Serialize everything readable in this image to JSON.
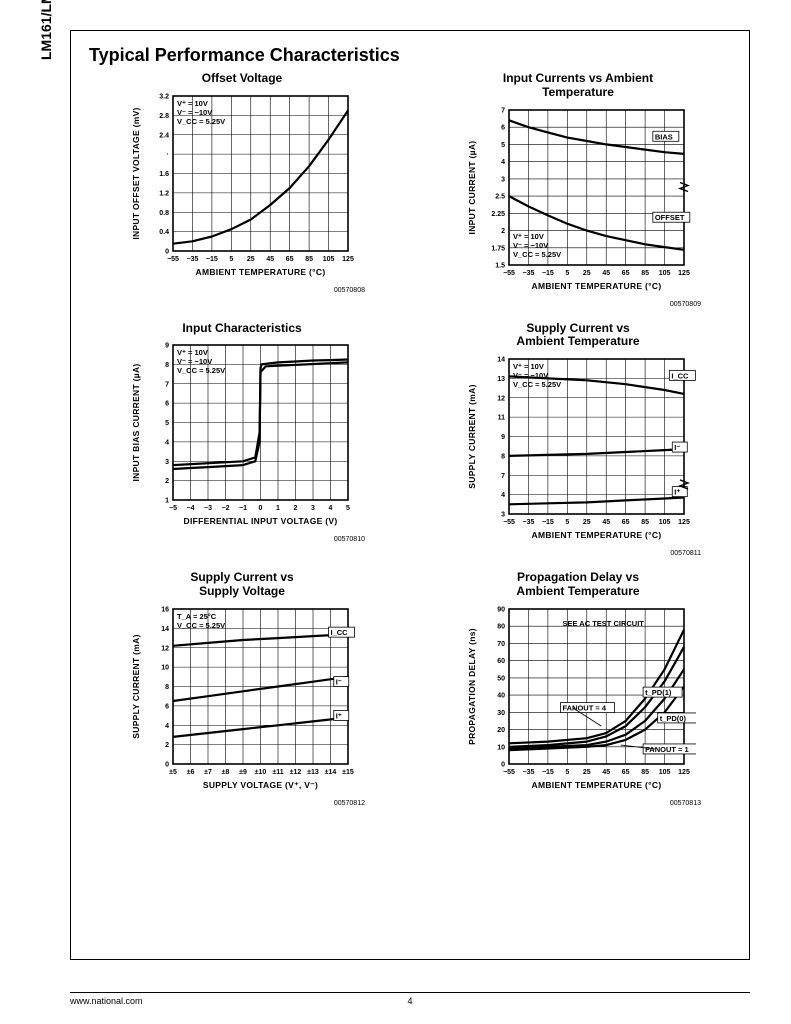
{
  "side_label": "LM161/LM361",
  "section_title": "Typical Performance Characteristics",
  "footer": {
    "url": "www.national.com",
    "page": "4"
  },
  "common": {
    "conditions": [
      "V⁺ = 10V",
      "V⁻ = −10V",
      "V_CC = 5.25V"
    ],
    "axis_color": "#000000",
    "grid_color": "#000000",
    "line_color": "#000000",
    "bg": "#ffffff",
    "line_width": 2.2,
    "grid_width": 0.6,
    "axis_width": 1.6,
    "tick_fontsize": 7,
    "label_fontsize": 8.5,
    "cond_fontsize": 7.5
  },
  "charts": [
    {
      "id": "offset_voltage",
      "title": "Offset Voltage",
      "figno": "00570808",
      "type": "line",
      "xlabel": "AMBIENT TEMPERATURE (°C)",
      "ylabel": "INPUT OFFSET VOLTAGE (mV)",
      "xticks": [
        -55,
        -35,
        -15,
        5,
        25,
        45,
        65,
        85,
        105,
        125
      ],
      "yticks": [
        0,
        0.4,
        0.8,
        1.2,
        1.6,
        "·",
        2.4,
        2.8,
        3.2
      ],
      "yvalues": [
        0,
        0.4,
        0.8,
        1.2,
        1.6,
        2.0,
        2.4,
        2.8,
        3.2
      ],
      "xlim": [
        -55,
        125
      ],
      "ylim": [
        0,
        3.2
      ],
      "series": [
        {
          "pts": [
            [
              -55,
              0.15
            ],
            [
              -35,
              0.2
            ],
            [
              -15,
              0.3
            ],
            [
              5,
              0.45
            ],
            [
              25,
              0.65
            ],
            [
              45,
              0.95
            ],
            [
              65,
              1.3
            ],
            [
              85,
              1.75
            ],
            [
              105,
              2.3
            ],
            [
              125,
              2.9
            ]
          ]
        }
      ],
      "cond_at": "top-left",
      "annotations": []
    },
    {
      "id": "input_currents",
      "title": "Input Currents vs Ambient\nTemperature",
      "figno": "00570809",
      "type": "line",
      "xlabel": "AMBIENT TEMPERATURE (°C)",
      "ylabel": "INPUT CURRENT (µA)",
      "xticks": [
        -55,
        -35,
        -15,
        5,
        25,
        45,
        65,
        85,
        105,
        125
      ],
      "yticks": [
        1.5,
        1.75,
        2,
        2.25,
        2.5,
        3,
        4,
        5,
        6,
        7
      ],
      "yvalues": [
        1.5,
        1.75,
        2,
        2.25,
        2.5,
        3,
        4,
        5,
        6,
        7
      ],
      "xlim": [
        -55,
        125
      ],
      "ylim": [
        1.5,
        7
      ],
      "series": [
        {
          "label": "BIAS",
          "label_at": [
            95,
            5.3
          ],
          "pts": [
            [
              -55,
              6.4
            ],
            [
              -35,
              6.0
            ],
            [
              -15,
              5.7
            ],
            [
              5,
              5.4
            ],
            [
              25,
              5.2
            ],
            [
              45,
              5.0
            ],
            [
              65,
              4.85
            ],
            [
              85,
              4.7
            ],
            [
              105,
              4.55
            ],
            [
              125,
              4.45
            ]
          ]
        },
        {
          "label": "OFFSET",
          "label_at": [
            95,
            2.15
          ],
          "pts": [
            [
              -55,
              2.5
            ],
            [
              -35,
              2.35
            ],
            [
              -15,
              2.22
            ],
            [
              5,
              2.1
            ],
            [
              25,
              2.0
            ],
            [
              45,
              1.92
            ],
            [
              65,
              1.86
            ],
            [
              85,
              1.8
            ],
            [
              105,
              1.76
            ],
            [
              125,
              1.72
            ]
          ]
        }
      ],
      "cond_at": "bottom-left",
      "ybreak": [
        2.5,
        3
      ]
    },
    {
      "id": "input_char",
      "title": "Input Characteristics",
      "figno": "00570810",
      "type": "line",
      "xlabel": "DIFFERENTIAL INPUT VOLTAGE (V)",
      "ylabel": "INPUT BIAS CURRENT (µA)",
      "xticks": [
        -5,
        -4,
        -3,
        -2,
        -1,
        0,
        1,
        2,
        3,
        4,
        5
      ],
      "yticks": [
        1,
        2,
        3,
        4,
        5,
        6,
        7,
        8,
        9
      ],
      "yvalues": [
        1,
        2,
        3,
        4,
        5,
        6,
        7,
        8,
        9
      ],
      "xlim": [
        -5,
        5
      ],
      "ylim": [
        1,
        9
      ],
      "series": [
        {
          "pts": [
            [
              -5,
              2.6
            ],
            [
              -4,
              2.65
            ],
            [
              -3,
              2.7
            ],
            [
              -2,
              2.75
            ],
            [
              -1,
              2.8
            ],
            [
              -0.3,
              3.0
            ],
            [
              -0.05,
              4.0
            ],
            [
              0,
              7.8
            ],
            [
              0.05,
              8.0
            ],
            [
              1,
              8.1
            ],
            [
              2,
              8.15
            ],
            [
              3,
              8.2
            ],
            [
              4,
              8.22
            ],
            [
              5,
              8.25
            ]
          ]
        },
        {
          "pts": [
            [
              -5,
              2.8
            ],
            [
              -1,
              3.0
            ],
            [
              -0.3,
              3.2
            ],
            [
              -0.05,
              4.5
            ],
            [
              0,
              7.6
            ],
            [
              0.3,
              7.9
            ],
            [
              5,
              8.1
            ]
          ]
        }
      ],
      "cond_at": "top-left"
    },
    {
      "id": "supply_current_temp",
      "title": "Supply Current vs\nAmbient Temperature",
      "figno": "00570811",
      "type": "line",
      "xlabel": "AMBIENT TEMPERATURE (°C)",
      "ylabel": "SUPPLY CURRENT (mA)",
      "xticks": [
        -55,
        -35,
        -15,
        5,
        25,
        45,
        65,
        85,
        105,
        125
      ],
      "yticks": [
        3,
        4,
        7,
        8,
        9,
        11,
        12,
        13,
        14
      ],
      "yvalues": [
        3,
        4,
        7,
        8,
        9,
        11,
        12,
        13,
        14
      ],
      "xlim": [
        -55,
        125
      ],
      "ylim": [
        3,
        14
      ],
      "series": [
        {
          "label": "I_CC",
          "label_at": [
            112,
            13.0
          ],
          "pts": [
            [
              -55,
              13.1
            ],
            [
              -15,
              13.0
            ],
            [
              25,
              12.9
            ],
            [
              65,
              12.7
            ],
            [
              105,
              12.4
            ],
            [
              125,
              12.2
            ]
          ]
        },
        {
          "label": "I⁻",
          "label_at": [
            115,
            8.3
          ],
          "pts": [
            [
              -55,
              8.0
            ],
            [
              -15,
              8.05
            ],
            [
              25,
              8.1
            ],
            [
              65,
              8.2
            ],
            [
              105,
              8.3
            ],
            [
              125,
              8.35
            ]
          ]
        },
        {
          "label": "I⁺",
          "label_at": [
            115,
            4.0
          ],
          "pts": [
            [
              -55,
              3.5
            ],
            [
              -15,
              3.55
            ],
            [
              25,
              3.6
            ],
            [
              65,
              3.7
            ],
            [
              105,
              3.8
            ],
            [
              125,
              3.85
            ]
          ]
        }
      ],
      "cond_at": "top-left",
      "ybreak": [
        4,
        7
      ]
    },
    {
      "id": "supply_current_volt",
      "title": "Supply Current vs\nSupply Voltage",
      "figno": "00570812",
      "type": "line",
      "xlabel": "SUPPLY VOLTAGE (V⁺, V⁻)",
      "ylabel": "SUPPLY CURRENT (mA)",
      "xticks": [
        "±5",
        "±6",
        "±7",
        "±8",
        "±9",
        "±10",
        "±11",
        "±12",
        "±13",
        "±14",
        "±15"
      ],
      "xvalues": [
        5,
        6,
        7,
        8,
        9,
        10,
        11,
        12,
        13,
        14,
        15
      ],
      "yticks": [
        0,
        2,
        4,
        6,
        8,
        10,
        12,
        14,
        16
      ],
      "yvalues": [
        0,
        2,
        4,
        6,
        8,
        10,
        12,
        14,
        16
      ],
      "xlim": [
        5,
        15
      ],
      "ylim": [
        0,
        16
      ],
      "series": [
        {
          "label": "I_CC",
          "label_at": [
            14,
            13.3
          ],
          "pts": [
            [
              5,
              12.2
            ],
            [
              7,
              12.5
            ],
            [
              9,
              12.8
            ],
            [
              11,
              13.0
            ],
            [
              13,
              13.2
            ],
            [
              15,
              13.4
            ]
          ]
        },
        {
          "label": "I⁻",
          "label_at": [
            14.3,
            8.2
          ],
          "pts": [
            [
              5,
              6.5
            ],
            [
              7,
              7.0
            ],
            [
              9,
              7.5
            ],
            [
              11,
              8.0
            ],
            [
              13,
              8.5
            ],
            [
              15,
              9.0
            ]
          ]
        },
        {
          "label": "I⁺",
          "label_at": [
            14.3,
            4.7
          ],
          "pts": [
            [
              5,
              2.8
            ],
            [
              7,
              3.2
            ],
            [
              9,
              3.6
            ],
            [
              11,
              4.0
            ],
            [
              13,
              4.4
            ],
            [
              15,
              4.8
            ]
          ]
        }
      ],
      "cond_override": [
        "T_A = 25°C",
        "V_CC = 5.25V"
      ],
      "cond_at": "top-left"
    },
    {
      "id": "prop_delay",
      "title": "Propagation Delay vs\nAmbient Temperature",
      "figno": "00570813",
      "type": "line",
      "xlabel": "AMBIENT TEMPERATURE (°C)",
      "ylabel": "PROPAGATION DELAY (ns)",
      "xticks": [
        -55,
        -35,
        -15,
        5,
        25,
        45,
        65,
        85,
        105,
        125
      ],
      "yticks": [
        0,
        10,
        20,
        30,
        40,
        50,
        60,
        70,
        80,
        90
      ],
      "yvalues": [
        0,
        10,
        20,
        30,
        40,
        50,
        60,
        70,
        80,
        90
      ],
      "xlim": [
        -55,
        125
      ],
      "ylim": [
        0,
        90
      ],
      "series": [
        {
          "pts": [
            [
              -55,
              12
            ],
            [
              -15,
              13
            ],
            [
              25,
              15
            ],
            [
              45,
              18
            ],
            [
              65,
              25
            ],
            [
              85,
              38
            ],
            [
              105,
              55
            ],
            [
              125,
              78
            ]
          ]
        },
        {
          "pts": [
            [
              -55,
              10
            ],
            [
              -15,
              11
            ],
            [
              25,
              13
            ],
            [
              45,
              16
            ],
            [
              65,
              22
            ],
            [
              85,
              33
            ],
            [
              105,
              48
            ],
            [
              125,
              68
            ]
          ]
        },
        {
          "pts": [
            [
              -55,
              9
            ],
            [
              -15,
              10
            ],
            [
              25,
              11
            ],
            [
              45,
              13
            ],
            [
              65,
              17
            ],
            [
              85,
              25
            ],
            [
              105,
              38
            ],
            [
              125,
              55
            ]
          ]
        },
        {
          "pts": [
            [
              -55,
              8
            ],
            [
              -15,
              9
            ],
            [
              25,
              10
            ],
            [
              45,
              11
            ],
            [
              65,
              14
            ],
            [
              85,
              20
            ],
            [
              105,
              30
            ],
            [
              125,
              45
            ]
          ]
        }
      ],
      "annotations": [
        {
          "text": "SEE AC TEST CIRCUIT",
          "at": [
            0,
            80
          ]
        },
        {
          "text": "t_PD(1)",
          "at": [
            85,
            40
          ],
          "box": true
        },
        {
          "text": "FANOUT = 4",
          "at": [
            0,
            31
          ],
          "box": true,
          "leader": [
            40,
            22
          ]
        },
        {
          "text": "t_PD(0)",
          "at": [
            100,
            25
          ],
          "box": true
        },
        {
          "text": "FANOUT = 1",
          "at": [
            85,
            7
          ],
          "box": true,
          "leader": [
            60,
            11
          ]
        }
      ],
      "cond_at": "none"
    }
  ]
}
